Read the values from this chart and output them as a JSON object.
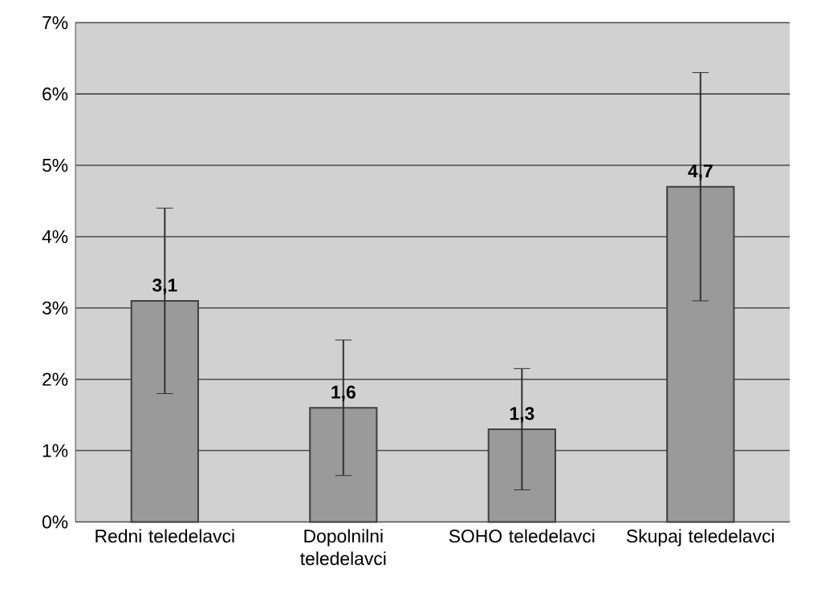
{
  "chart_data": {
    "type": "bar",
    "categories": [
      "Redni teledelavci",
      "Dopolnilni teledelavci",
      "SOHO teledelavci",
      "Skupaj teledelavci"
    ],
    "values": [
      3.1,
      1.6,
      1.3,
      4.7
    ],
    "errors": [
      1.3,
      0.95,
      0.85,
      1.6
    ],
    "value_labels": [
      "3,1",
      "1,6",
      "1,3",
      "4,7"
    ],
    "color": "#9a9a9a",
    "ylim": [
      0,
      7
    ],
    "yticks": [
      {
        "value": 0,
        "label": "0%"
      },
      {
        "value": 1,
        "label": "1%"
      },
      {
        "value": 2,
        "label": "2%"
      },
      {
        "value": 3,
        "label": "3%"
      },
      {
        "value": 4,
        "label": "4%"
      },
      {
        "value": 5,
        "label": "5%"
      },
      {
        "value": 6,
        "label": "6%"
      },
      {
        "value": 7,
        "label": "7%"
      }
    ],
    "grid": "y"
  }
}
